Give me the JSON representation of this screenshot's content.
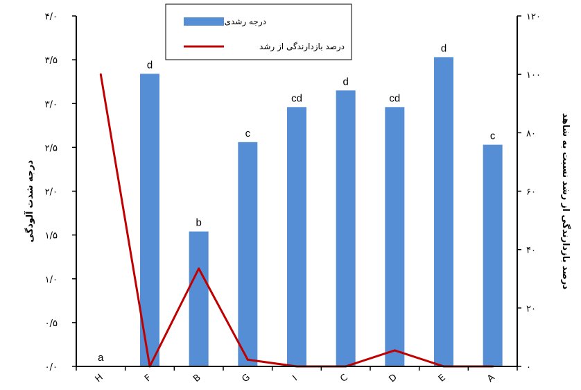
{
  "chart_data": {
    "type": "bar",
    "categories": [
      "H",
      "F",
      "B",
      "G",
      "I",
      "C",
      "D",
      "E",
      "A"
    ],
    "series": [
      {
        "name": "درجه رشدی",
        "type": "bar",
        "axis": "left",
        "color": "#558ED5",
        "values": [
          0,
          3.34,
          1.54,
          2.56,
          2.96,
          3.15,
          2.96,
          3.53,
          2.53
        ],
        "labels": [
          "a",
          "d",
          "b",
          "c",
          "cd",
          "d",
          "cd",
          "d",
          "c"
        ]
      },
      {
        "name": "درصد بازدارندگی از رشد",
        "type": "line",
        "axis": "right",
        "color": "#C00000",
        "values": [
          100,
          0,
          33.5,
          2.3,
          0,
          0,
          5.5,
          0,
          0
        ]
      }
    ],
    "ylabel_left": "درجه شدت آلودگی",
    "ylabel_right": "درصد بازدارندگی از رشد نسبت به شاهد",
    "ylim_left": [
      0,
      4
    ],
    "ylim_right": [
      0,
      120
    ],
    "yticks_left": [
      "۰/۰",
      "۰/۵",
      "۱/۰",
      "۱/۵",
      "۲/۰",
      "۲/۵",
      "۳/۰",
      "۳/۵",
      "۴/۰"
    ],
    "yticks_right": [
      "۰",
      "۲۰",
      "۴۰",
      "۶۰",
      "۸۰",
      "۱۰۰",
      "۱۲۰"
    ],
    "legend_position": "top-center",
    "grid": false
  }
}
